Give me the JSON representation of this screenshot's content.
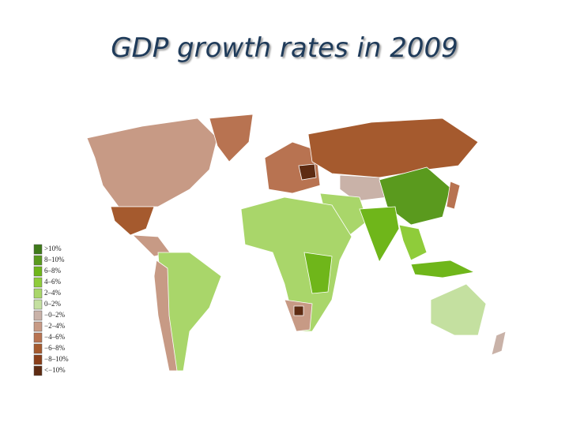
{
  "title": "GDP growth rates in 2009",
  "legend": {
    "items": [
      {
        "label": ">10%",
        "color": "#3f7a1a"
      },
      {
        "label": "8–10%",
        "color": "#5a9a1e"
      },
      {
        "label": "6–8%",
        "color": "#6fb61a"
      },
      {
        "label": "4–6%",
        "color": "#8fcc3a"
      },
      {
        "label": "2–4%",
        "color": "#a9d66a"
      },
      {
        "label": "0–2%",
        "color": "#c4e0a0"
      },
      {
        "label": "−0–2%",
        "color": "#c9b2a8"
      },
      {
        "label": "−2–4%",
        "color": "#c79a85"
      },
      {
        "label": "−4–6%",
        "color": "#b87351"
      },
      {
        "label": "−6–8%",
        "color": "#a55a2e"
      },
      {
        "label": "−8–10%",
        "color": "#8a3f1a"
      },
      {
        "label": "<−10%",
        "color": "#5e2b12"
      }
    ]
  }
}
